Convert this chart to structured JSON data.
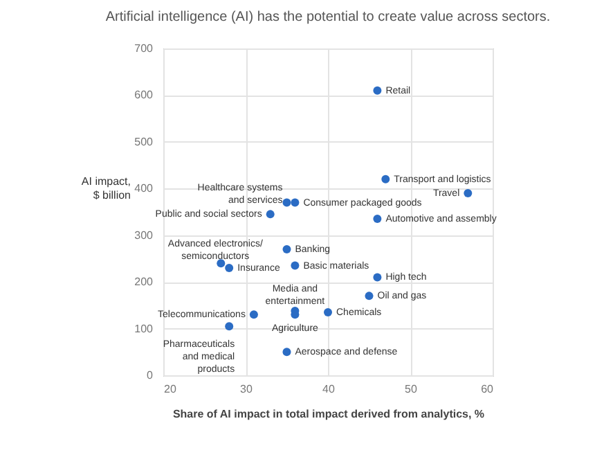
{
  "chart_data": {
    "type": "scatter",
    "title": "Artificial intelligence (AI) has the potential to create value across sectors.",
    "xlabel": "Share of AI impact in total impact derived from analytics, %",
    "ylabel": "AI impact,\n$ billion",
    "x": [
      46,
      47,
      57,
      35,
      36,
      33,
      46,
      27,
      28,
      35,
      36,
      46,
      45,
      36,
      36,
      40,
      31,
      28,
      35
    ],
    "series": [
      {
        "color": "#2b6cc4",
        "values": [
          610,
          420,
          390,
          370,
          370,
          345,
          335,
          240,
          230,
          270,
          235,
          210,
          170,
          138,
          130,
          135,
          130,
          105,
          50
        ]
      }
    ],
    "annotations": [
      {
        "text": "Retail",
        "x": 46,
        "y": 610
      },
      {
        "text": "Transport and logistics",
        "x": 47,
        "y": 420
      },
      {
        "text": "Travel",
        "x": 57,
        "y": 390
      },
      {
        "text": "Healthcare systems\nand services",
        "x": 35,
        "y": 370
      },
      {
        "text": "Consumer packaged goods",
        "x": 36,
        "y": 370
      },
      {
        "text": "Public and social sectors",
        "x": 33,
        "y": 345
      },
      {
        "text": "Automotive and assembly",
        "x": 46,
        "y": 335
      },
      {
        "text": "Advanced electronics/\nsemiconductors",
        "x": 27,
        "y": 240
      },
      {
        "text": "Insurance",
        "x": 28,
        "y": 230
      },
      {
        "text": "Banking",
        "x": 35,
        "y": 270
      },
      {
        "text": "Basic materials",
        "x": 36,
        "y": 235
      },
      {
        "text": "High tech",
        "x": 46,
        "y": 210
      },
      {
        "text": "Oil and gas",
        "x": 45,
        "y": 170
      },
      {
        "text": "Media and\nentertainment",
        "x": 36,
        "y": 138
      },
      {
        "text": "Agriculture",
        "x": 36,
        "y": 130
      },
      {
        "text": "Chemicals",
        "x": 40,
        "y": 135
      },
      {
        "text": "Telecommunications",
        "x": 31,
        "y": 130
      },
      {
        "text": "Pharmaceuticals\nand medical\nproducts",
        "x": 28,
        "y": 105
      },
      {
        "text": "Aerospace and defense",
        "x": 35,
        "y": 50
      }
    ],
    "xlim": [
      20,
      60
    ],
    "xticks": [
      20,
      30,
      40,
      50,
      60
    ],
    "ylim": [
      0,
      700
    ],
    "yticks": [
      0,
      100,
      200,
      300,
      400,
      500,
      600,
      700
    ],
    "grid": true,
    "marker": "circle"
  }
}
